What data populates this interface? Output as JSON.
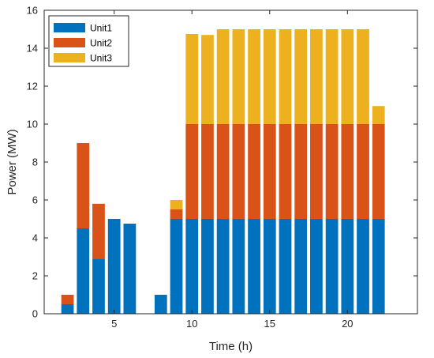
{
  "chart_data": {
    "type": "bar",
    "stacked": true,
    "xlabel": "Time (h)",
    "ylabel": "Power (MW)",
    "xlim": [
      0.5,
      24.5
    ],
    "ylim": [
      0,
      16
    ],
    "xticks": [
      5,
      10,
      15,
      20
    ],
    "yticks": [
      0,
      2,
      4,
      6,
      8,
      10,
      12,
      14,
      16
    ],
    "grid": false,
    "legend_position": "top-left",
    "x": [
      1,
      2,
      3,
      4,
      5,
      6,
      7,
      8,
      9,
      10,
      11,
      12,
      13,
      14,
      15,
      16,
      17,
      18,
      19,
      20,
      21,
      22,
      23,
      24
    ],
    "series": [
      {
        "name": "Unit1",
        "color": "#0072BD",
        "values": [
          0,
          0.5,
          4.5,
          2.9,
          5.0,
          4.75,
          0,
          1.0,
          5.0,
          5.0,
          5.0,
          5.0,
          5.0,
          5.0,
          5.0,
          5.0,
          5.0,
          5.0,
          5.0,
          5.0,
          5.0,
          5.0,
          0,
          0
        ]
      },
      {
        "name": "Unit2",
        "color": "#D95319",
        "values": [
          0,
          0.5,
          4.5,
          2.9,
          0,
          0,
          0,
          0,
          0.5,
          5.0,
          5.0,
          5.0,
          5.0,
          5.0,
          5.0,
          5.0,
          5.0,
          5.0,
          5.0,
          5.0,
          5.0,
          5.0,
          0,
          0
        ]
      },
      {
        "name": "Unit3",
        "color": "#EDB120",
        "values": [
          0,
          0,
          0,
          0,
          0,
          0,
          0,
          0,
          0.5,
          4.75,
          4.7,
          5.0,
          5.0,
          5.0,
          5.0,
          5.0,
          5.0,
          5.0,
          5.0,
          5.0,
          5.0,
          0.95,
          0,
          0
        ]
      }
    ]
  }
}
